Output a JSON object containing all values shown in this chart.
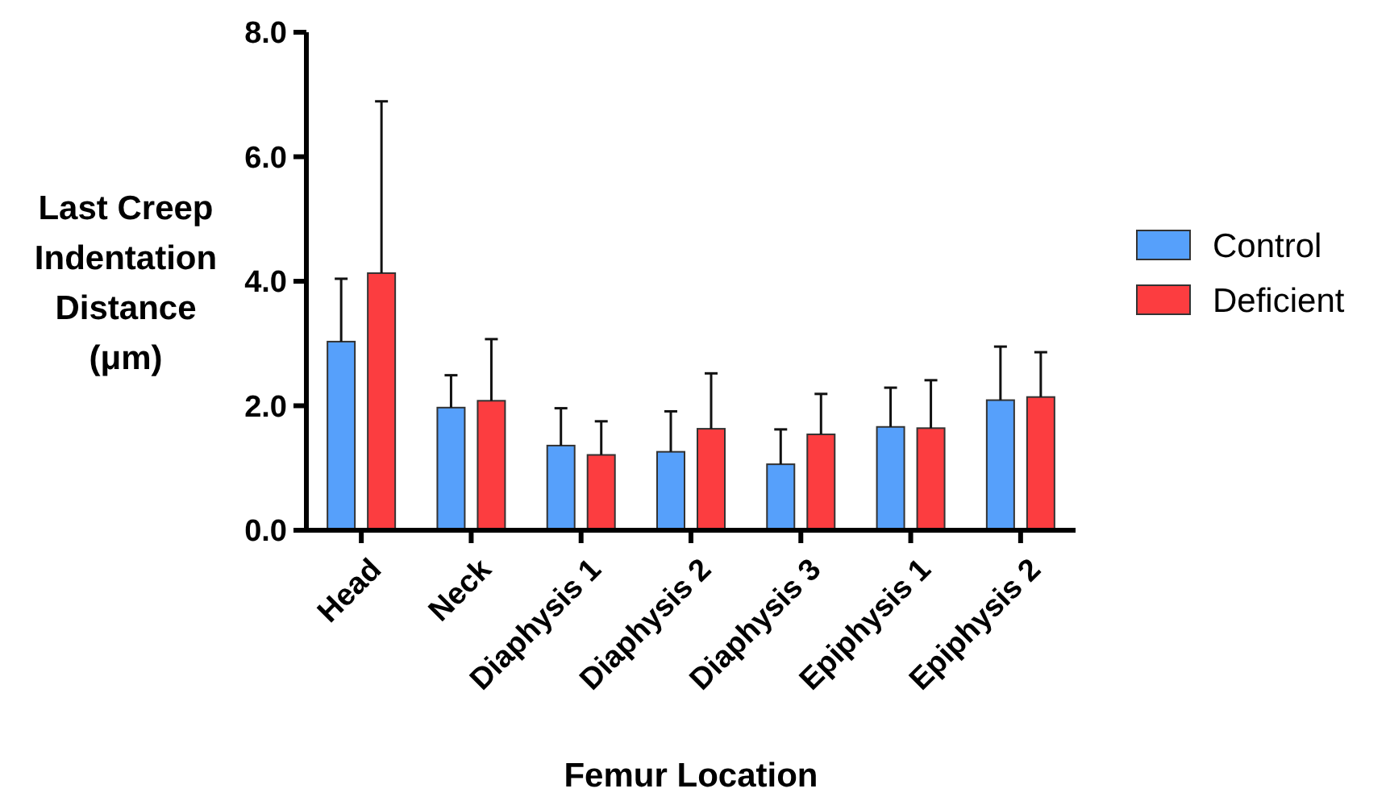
{
  "chart_data": {
    "type": "bar",
    "xlabel": "Femur Location",
    "ylabel": "Last Creep Indentation Distance (μm)",
    "categories": [
      "Head",
      "Neck",
      "Diaphysis 1",
      "Diaphysis 2",
      "Diaphysis 3",
      "Epiphysis 1",
      "Epiphysis 2"
    ],
    "series": [
      {
        "name": "Control",
        "color": "#56a0fb",
        "values": [
          3.03,
          1.97,
          1.36,
          1.26,
          1.06,
          1.66,
          2.09
        ],
        "errors": [
          [
            3.03,
            4.04
          ],
          [
            1.97,
            2.49
          ],
          [
            1.36,
            1.96
          ],
          [
            1.26,
            1.91
          ],
          [
            1.06,
            1.62
          ],
          [
            1.66,
            2.29
          ],
          [
            2.09,
            2.95
          ]
        ]
      },
      {
        "name": "Deficient",
        "color": "#fc3d40",
        "values": [
          4.13,
          2.08,
          1.21,
          1.63,
          1.54,
          1.64,
          2.14
        ],
        "errors": [
          [
            4.13,
            6.89
          ],
          [
            2.08,
            3.07
          ],
          [
            1.21,
            1.75
          ],
          [
            1.63,
            2.52
          ],
          [
            1.54,
            2.19
          ],
          [
            1.64,
            2.41
          ],
          [
            2.14,
            2.86
          ]
        ]
      }
    ],
    "ylim": [
      0,
      8
    ],
    "yticks": [
      {
        "value": 0,
        "label": "0.0"
      },
      {
        "value": 2,
        "label": "2.0"
      },
      {
        "value": 4,
        "label": "4.0"
      },
      {
        "value": 6,
        "label": "6.0"
      },
      {
        "value": 8,
        "label": "8.0"
      }
    ],
    "grid": false,
    "legend": "right"
  }
}
